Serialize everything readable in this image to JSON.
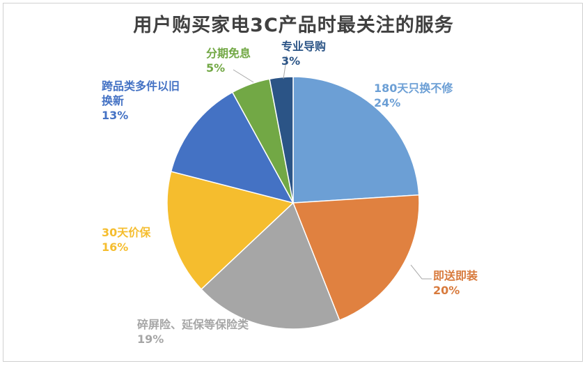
{
  "chart_data": {
    "type": "pie",
    "title": "用户购买家电3C产品时最关注的服务",
    "slices": [
      {
        "label": "180天只换不修",
        "value": 24,
        "value_label": "24%",
        "color": "#6c9fd5"
      },
      {
        "label": "即送即装",
        "value": 20,
        "value_label": "20%",
        "color": "#e08140"
      },
      {
        "label": "碎屏险、延保等保险类",
        "value": 19,
        "value_label": "19%",
        "color": "#a6a6a6"
      },
      {
        "label": "30天价保",
        "value": 16,
        "value_label": "16%",
        "color": "#f5bd2e"
      },
      {
        "label": "跨品类多件以旧换新",
        "label_lines": [
          "跨品类多件以旧",
          "换新"
        ],
        "value": 13,
        "value_label": "13%",
        "color": "#4472c4"
      },
      {
        "label": "分期免息",
        "value": 5,
        "value_label": "5%",
        "color": "#72a845"
      },
      {
        "label": "专业导购",
        "value": 3,
        "value_label": "3%",
        "color": "#2b5486"
      }
    ],
    "label_colors": [
      "#6c9fd5",
      "#d87a3c",
      "#a6a6a6",
      "#f5bd2e",
      "#4472c4",
      "#72a845",
      "#2b5486"
    ],
    "legend": "none"
  }
}
